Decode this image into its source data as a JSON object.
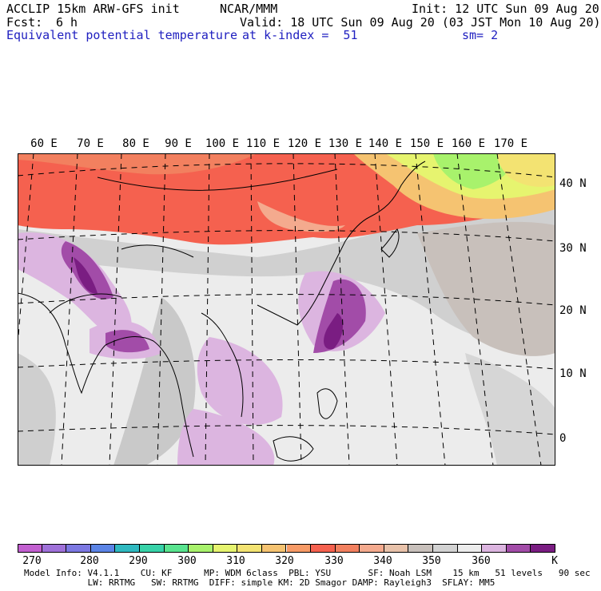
{
  "header": {
    "title": "ACCLIP 15km ARW-GFS init",
    "org": "NCAR/MMM",
    "init": "Init: 12 UTC Sun 09 Aug 20",
    "fcst_label": "Fcst:",
    "fcst_value": "6 h",
    "valid": "Valid: 18 UTC Sun 09 Aug 20 (03 JST Mon 10 Aug 20)",
    "field": "Equivalent potential temperature",
    "level": "at k-index =  51",
    "smoothing": "sm= 2"
  },
  "map": {
    "lon_labels": [
      "60 E",
      "70 E",
      "80 E",
      "90 E",
      "100 E",
      "110 E",
      "120 E",
      "130 E",
      "140 E",
      "150 E",
      "160 E",
      "170 E"
    ],
    "lat_labels": [
      "40 N",
      "30 N",
      "20 N",
      "10 N",
      "0"
    ]
  },
  "colorbar": {
    "colors": [
      "#c25fd0",
      "#9f71d9",
      "#7c78e2",
      "#5b84e6",
      "#2fb9c0",
      "#37d2a8",
      "#59e48f",
      "#a8f26c",
      "#e6f46f",
      "#f3e372",
      "#f5c371",
      "#f79a66",
      "#f5614f",
      "#f2805f",
      "#f4aa8e",
      "#e8c2aa",
      "#c8c0bb",
      "#d2d2d2",
      "#ececec",
      "#dcb5e0",
      "#a24ca8",
      "#7a1d82"
    ],
    "labels": [
      "270",
      "280",
      "290",
      "300",
      "310",
      "320",
      "330",
      "340",
      "350",
      "360",
      "K"
    ],
    "label_positions": [
      270,
      280,
      290,
      300,
      310,
      320,
      330,
      340,
      350,
      360,
      370
    ]
  },
  "footer": {
    "line1": "Model Info: V4.1.1    CU: KF      MP: WDM 6class  PBL: YSU       SF: Noah LSM    15 km   51 levels   90 sec",
    "line2": "            LW: RRTMG   SW: RRTMG  DIFF: simple KM: 2D Smagor DAMP: Rayleigh3  SFLAY: MM5"
  }
}
